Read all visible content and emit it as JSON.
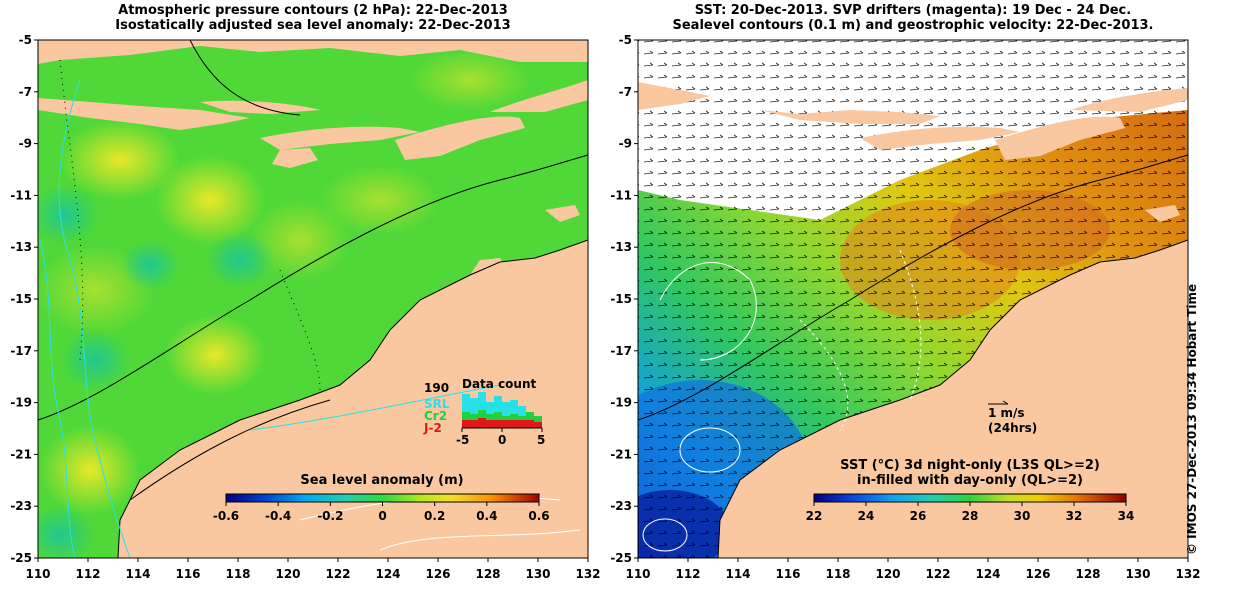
{
  "left_panel": {
    "title_line1": "Atmospheric pressure contours (2 hPa): 22-Dec-2013",
    "title_line2": "Isostatically adjusted sea level anomaly: 22-Dec-2013",
    "colorbar_title": "Sea level anomaly (m)",
    "colorbar_ticks": [
      "-0.6",
      "-0.4",
      "-0.2",
      "0",
      "0.2",
      "0.4",
      "0.6"
    ],
    "data_count": {
      "title": "Data count",
      "total": "190",
      "sources": [
        {
          "label": "SRL",
          "color": "#28e0e8"
        },
        {
          "label": "Cr2",
          "color": "#20d040"
        },
        {
          "label": "J-2",
          "color": "#e01818"
        }
      ],
      "xticks": [
        "-5",
        "0",
        "5"
      ]
    }
  },
  "right_panel": {
    "title_line1": "SST: 20-Dec-2013. SVP drifters (magenta): 19 Dec - 24 Dec.",
    "title_line2": "Sealevel contours (0.1 m) and geostrophic velocity: 22-Dec-2013.",
    "colorbar_title_line1": "SST (°C)  3d night-only (L3S QL>=2)",
    "colorbar_title_line2": "in-filled with day-only (QL>=2)",
    "colorbar_ticks": [
      "22",
      "24",
      "26",
      "28",
      "30",
      "32",
      "34"
    ],
    "velocity_scale_label": "1 m/s",
    "velocity_scale_sub": "(24hrs)"
  },
  "axes": {
    "lon_ticks": [
      "110",
      "112",
      "114",
      "116",
      "118",
      "120",
      "122",
      "124",
      "126",
      "128",
      "130",
      "132"
    ],
    "lat_ticks": [
      "-5",
      "-7",
      "-9",
      "-11",
      "-13",
      "-15",
      "-17",
      "-19",
      "-21",
      "-23",
      "-25"
    ],
    "lon_range": [
      110,
      132
    ],
    "lat_range": [
      -25,
      -5
    ]
  },
  "credit": "© IMOS 27-Dec-2013 09:34 Hobart Time",
  "colors": {
    "land": "#fac8a0",
    "sla_colormap": [
      "#000080",
      "#0050d0",
      "#00b0f0",
      "#20d0a0",
      "#30d840",
      "#60e020",
      "#c0e820",
      "#f0e020",
      "#f8a000",
      "#e05000",
      "#a00000"
    ],
    "sst_colormap": [
      "#000080",
      "#1040e0",
      "#10a0f0",
      "#20d0b0",
      "#30d040",
      "#a0e020",
      "#f0e000",
      "#f0a000",
      "#e06000",
      "#c03000",
      "#900000"
    ]
  }
}
